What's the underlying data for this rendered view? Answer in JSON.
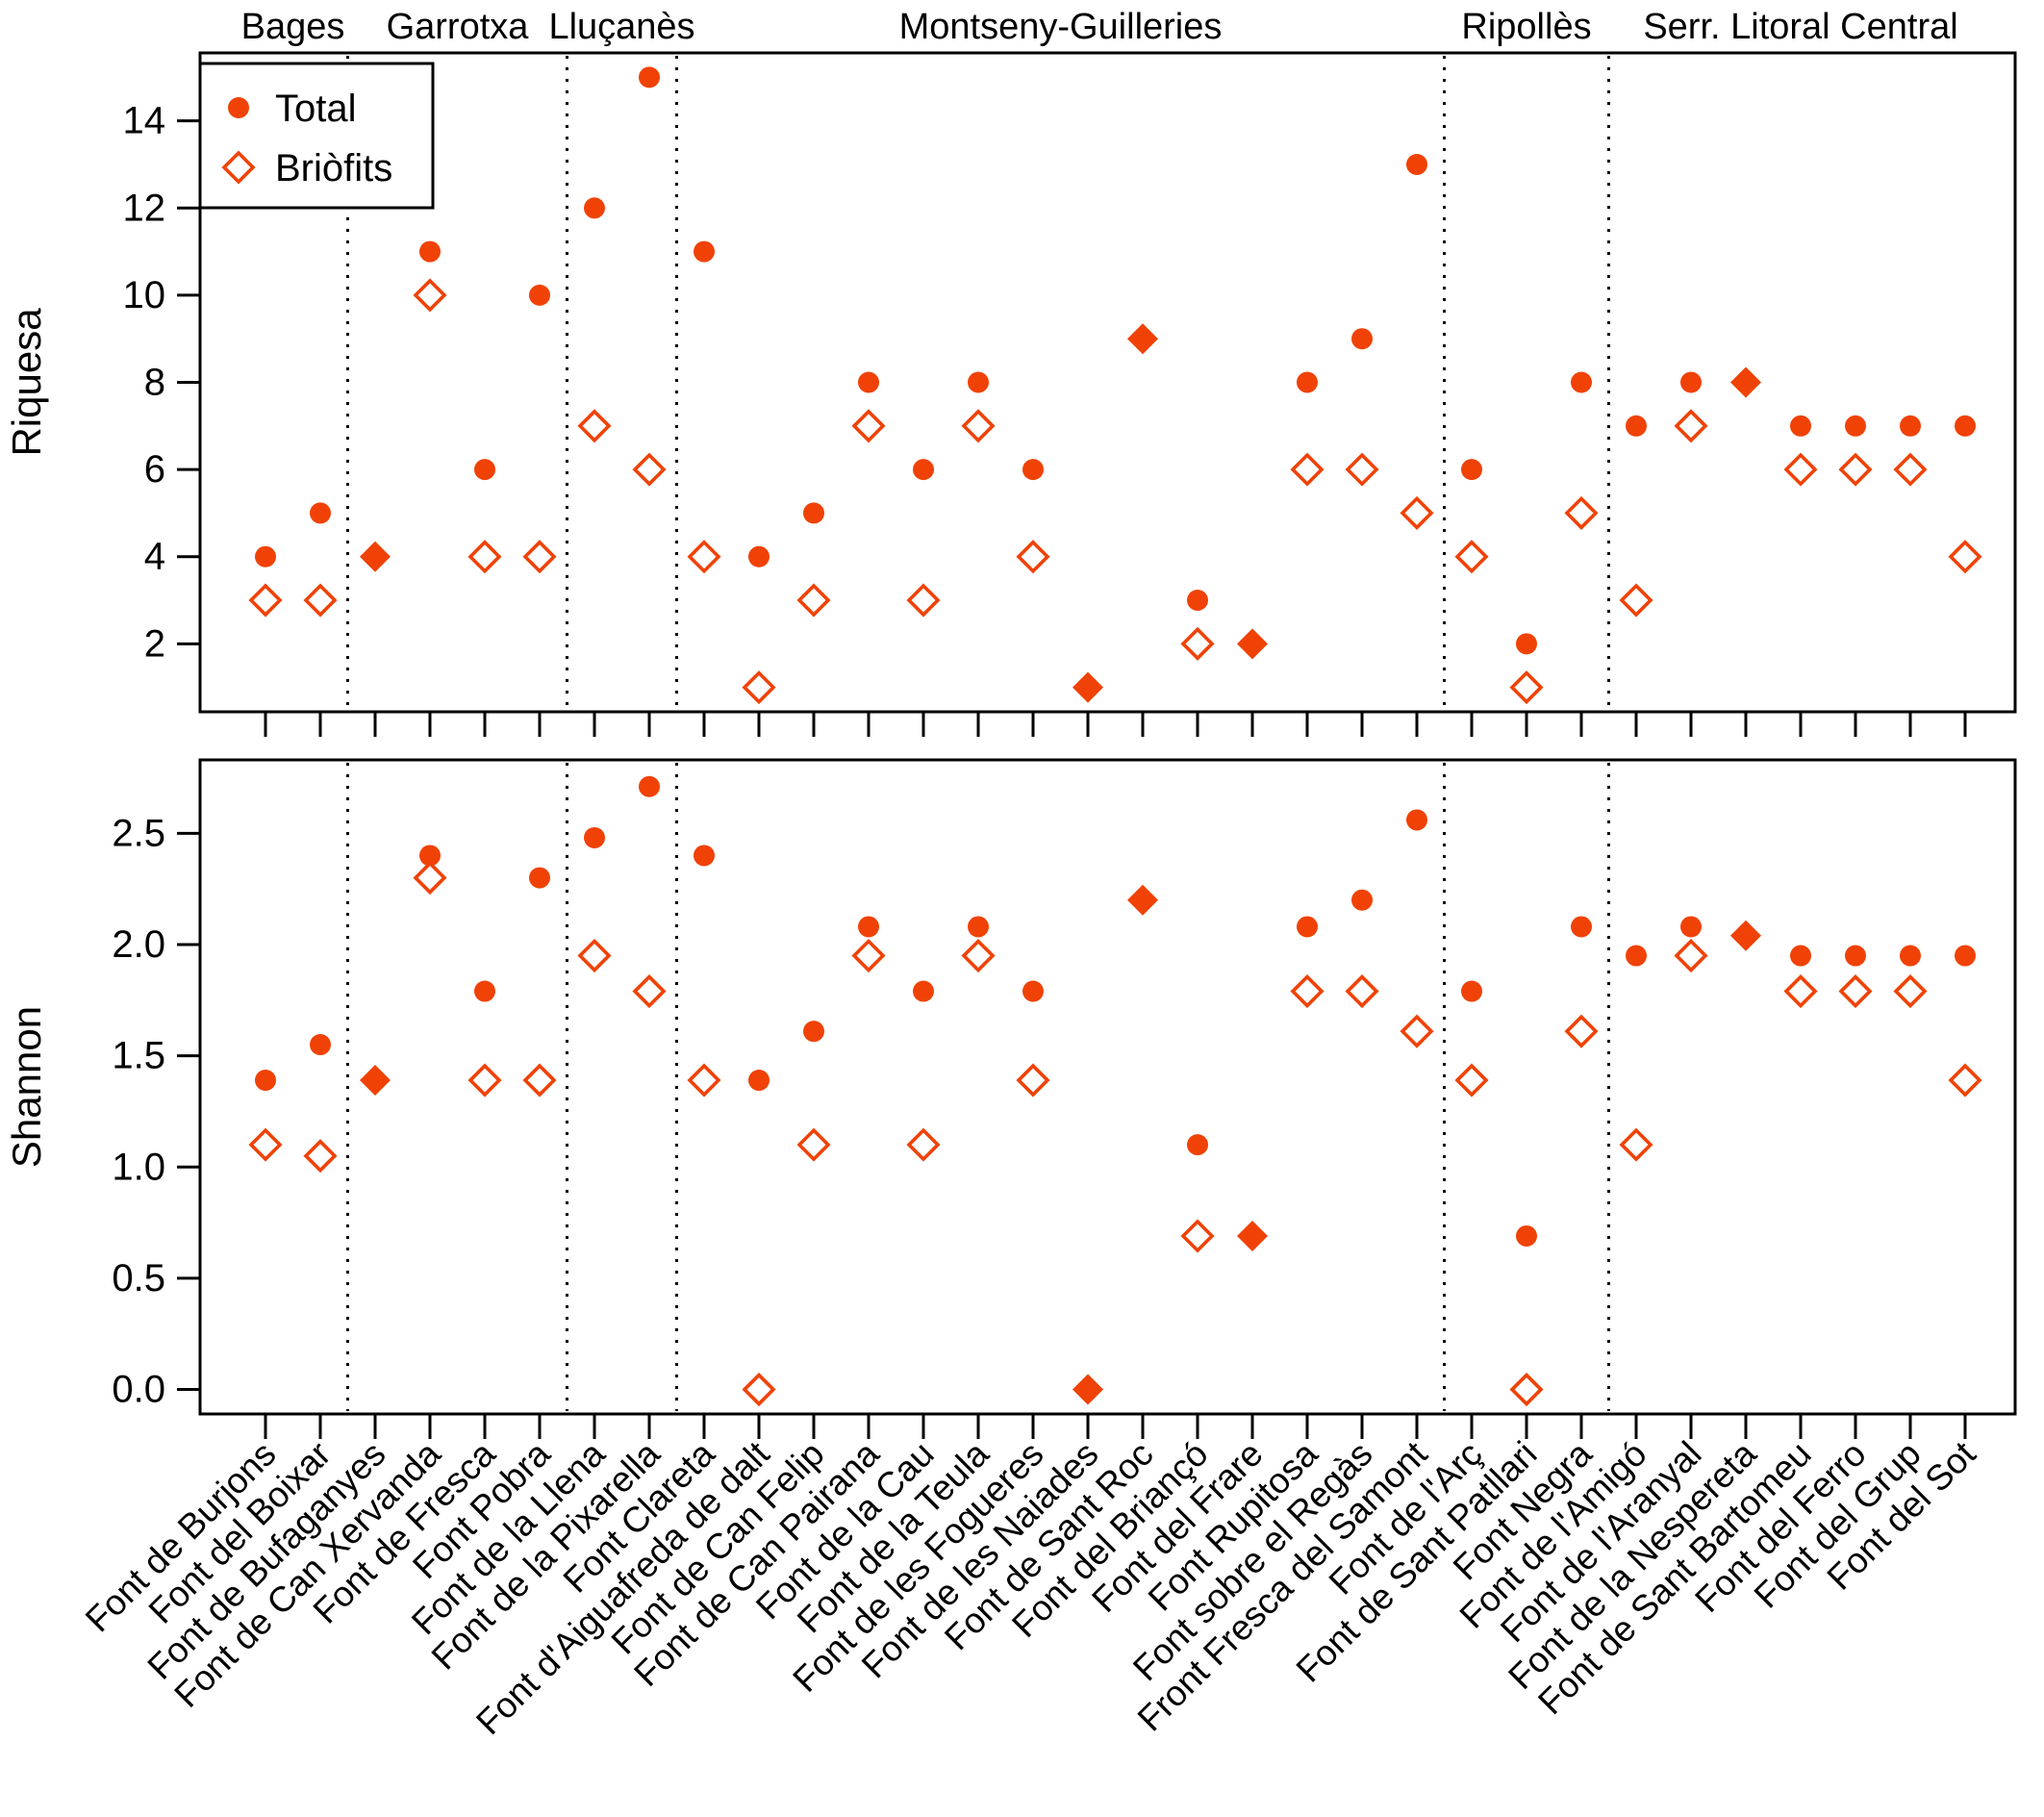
{
  "chart_data": {
    "type": "scatter",
    "title": "",
    "color": "#F04206",
    "background": "#FFFFFF",
    "legend_position": "top-left",
    "legend": [
      {
        "label": "Total",
        "marker": "filled-circle"
      },
      {
        "label": "Briòfits",
        "marker": "open-diamond"
      }
    ],
    "overlap_marker_note": "A filled diamond is drawn where Total and Briòfits coincide",
    "group_divider_style": "vertical dotted lines between regions",
    "regions": [
      {
        "name": "Bages",
        "n_sites": 2
      },
      {
        "name": "Garrotxa",
        "n_sites": 4
      },
      {
        "name": "Lluçanès",
        "n_sites": 2
      },
      {
        "name": "Montseny-Guilleries",
        "n_sites": 14
      },
      {
        "name": "Ripollès",
        "n_sites": 3
      },
      {
        "name": "Serr. Litoral Central",
        "n_sites": 7
      }
    ],
    "categories": [
      "Font de Burjons",
      "Font del Boixar",
      "Font de Bufaganyes",
      "Font de Can Xervanda",
      "Font de Fresca",
      "Font Pobra",
      "Font de la Llena",
      "Font de la Pixarella",
      "Font Clareta",
      "Font d'Aiguafreda de dalt",
      "Font de Can Felip",
      "Font de Can Pairana",
      "Font de la Cau",
      "Font de la Teula",
      "Font de les Fogueres",
      "Font de les Naiades",
      "Font de Sant Roc",
      "Font del Briançó",
      "Font del Frare",
      "Font Rupitosa",
      "Font sobre el Regàs",
      "Front Fresca del Samont",
      "Font de l'Arç",
      "Font de Sant Patllari",
      "Font Negra",
      "Font de l'Amigó",
      "Font de l'Aranyal",
      "Font de la Nespereta",
      "Font de Sant Bartomeu",
      "Font del Ferro",
      "Font del Grup",
      "Font del Sot"
    ],
    "panels": [
      {
        "id": "riquesa",
        "ylabel": "Riquesa",
        "yticks": [
          2,
          4,
          6,
          8,
          10,
          12,
          14
        ],
        "tick_decimals": 0,
        "ylim": [
          0.44,
          15.56
        ],
        "series": [
          {
            "name": "Total",
            "values": [
              4,
              5,
              4,
              11,
              6,
              10,
              12,
              15,
              11,
              4,
              5,
              8,
              6,
              8,
              6,
              1,
              9,
              3,
              2,
              8,
              9,
              13,
              6,
              2,
              8,
              7,
              8,
              8,
              7,
              7,
              7,
              7
            ]
          },
          {
            "name": "Briòfits",
            "values": [
              3,
              3,
              4,
              10,
              4,
              4,
              7,
              6,
              4,
              1,
              3,
              7,
              3,
              7,
              4,
              1,
              9,
              2,
              2,
              6,
              6,
              5,
              4,
              1,
              5,
              3,
              7,
              8,
              6,
              6,
              6,
              4
            ]
          }
        ]
      },
      {
        "id": "shannon",
        "ylabel": "Shannon",
        "yticks": [
          0,
          0.5,
          1,
          1.5,
          2,
          2.5
        ],
        "tick_decimals": 1,
        "ylim": [
          -0.11,
          2.83
        ],
        "series": [
          {
            "name": "Total",
            "values": [
              1.39,
              1.55,
              1.39,
              2.4,
              1.79,
              2.3,
              2.48,
              2.71,
              2.4,
              1.39,
              1.61,
              2.08,
              1.79,
              2.08,
              1.79,
              0.0,
              2.2,
              1.1,
              0.69,
              2.08,
              2.2,
              2.56,
              1.79,
              0.69,
              2.08,
              1.95,
              2.08,
              2.04,
              1.95,
              1.95,
              1.95,
              1.95
            ]
          },
          {
            "name": "Briòfits",
            "values": [
              1.1,
              1.05,
              1.39,
              2.3,
              1.39,
              1.39,
              1.95,
              1.79,
              1.39,
              0.0,
              1.1,
              1.95,
              1.1,
              1.95,
              1.39,
              0.0,
              2.2,
              0.69,
              0.69,
              1.79,
              1.79,
              1.61,
              1.39,
              0.0,
              1.61,
              1.1,
              1.95,
              2.04,
              1.79,
              1.79,
              1.79,
              1.39
            ]
          }
        ]
      }
    ]
  }
}
